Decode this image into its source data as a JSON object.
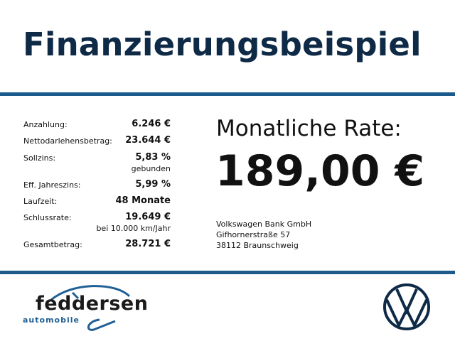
{
  "title": "Finanzierungsbeispiel",
  "rows": [
    {
      "label": "Anzahlung:",
      "value": "6.246 €"
    },
    {
      "label": "Nettodarlehensbetrag:",
      "value": "23.644 €"
    },
    {
      "label": "Sollzins:",
      "value": "5,83 %",
      "note": "gebunden"
    },
    {
      "label": "Eff. Jahreszins:",
      "value": "5,99 %"
    },
    {
      "label": "Laufzeit:",
      "value": "48 Monate"
    },
    {
      "label": "Schlussrate:",
      "value": "19.649 €",
      "note": "bei 10.000 km/Jahr"
    },
    {
      "label": "Gesamtbetrag:",
      "value": "28.721 €"
    }
  ],
  "rate": {
    "label": "Monatliche Rate:",
    "value": "189,00 €"
  },
  "lender": {
    "name": "Volkswagen Bank GmbH",
    "street": "Gifhornerstraße 57",
    "city": "38112 Braunschweig"
  },
  "dealer_logo": {
    "name": "feddersen",
    "sub": "automobile"
  },
  "brand_logo": "VW",
  "colors": {
    "title": "#0f2a47",
    "rule": "#1c5a8c",
    "logo_blue": "#1f5f95"
  }
}
